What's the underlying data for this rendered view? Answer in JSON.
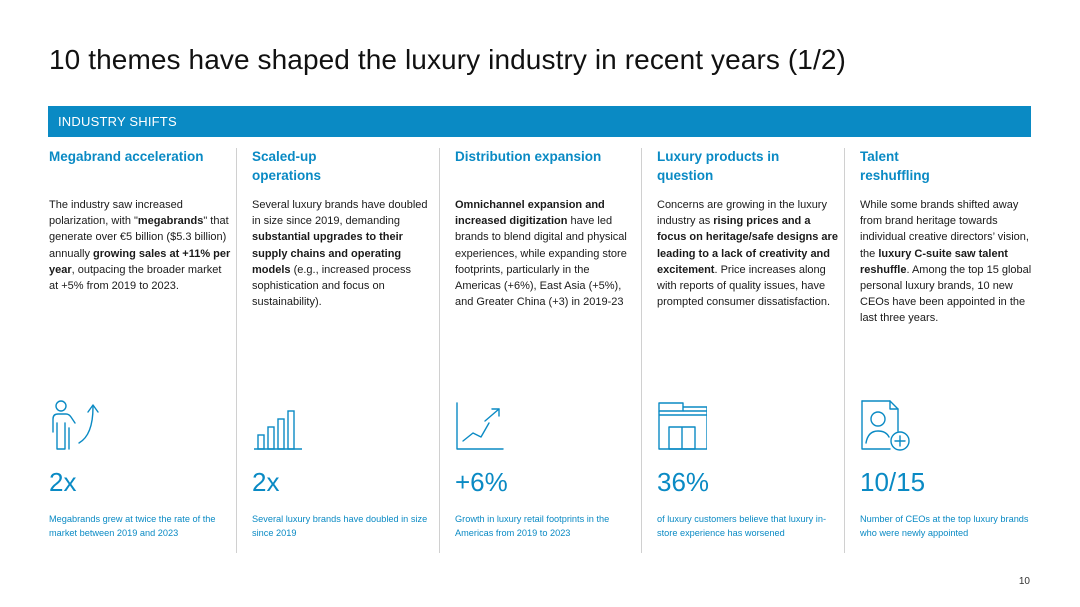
{
  "title": "10 themes have shaped the luxury industry in recent years (1/2)",
  "banner": "INDUSTRY SHIFTS",
  "accent_color": "#0a8ac4",
  "page_number": "10",
  "columns": [
    {
      "heading": "Megabrand acceleration",
      "body": [
        {
          "t": "The industry saw increased polarization, with \""
        },
        {
          "t": "megabrands",
          "b": true
        },
        {
          "t": "\" that generate over €5 billion ($5.3 billion) annually "
        },
        {
          "t": "growing sales at +11% per year",
          "b": true
        },
        {
          "t": ", outpacing the broader market at +5% from 2019 to 2023."
        }
      ],
      "icon": "person-growth-icon",
      "stat": "2x",
      "caption": "Megabrands grew at twice the rate of the market between 2019 and 2023"
    },
    {
      "heading": "Scaled-up operations",
      "body": [
        {
          "t": "Several luxury brands have doubled in size since 2019, demanding "
        },
        {
          "t": "substantial upgrades to their supply chains and operating models",
          "b": true
        },
        {
          "t": " (e.g., increased process sophistication and focus on sustainability)."
        }
      ],
      "icon": "bar-chart-icon",
      "stat": "2x",
      "caption": "Several luxury brands have doubled in size since 2019"
    },
    {
      "heading": "Distribution expansion",
      "body": [
        {
          "t": "Omnichannel expansion and increased digitization",
          "b": true
        },
        {
          "t": " have led brands to blend digital and physical experiences, while expanding store footprints, particularly in the Americas (+6%), East Asia (+5%), and Greater China (+3) in 2019-23"
        }
      ],
      "icon": "line-growth-icon",
      "stat": "+6%",
      "caption": "Growth in luxury retail footprints in the Americas from 2019 to 2023"
    },
    {
      "heading": "Luxury products in question",
      "body": [
        {
          "t": "Concerns are growing in the luxury industry as "
        },
        {
          "t": "rising prices and a focus on heritage/safe designs are leading to a lack of creativity and excitement",
          "b": true
        },
        {
          "t": ". Price increases along with reports of quality issues, have prompted consumer dissatisfaction."
        }
      ],
      "icon": "storefront-icon",
      "stat": "36%",
      "caption": "of luxury customers believe that luxury in-store experience has worsened"
    },
    {
      "heading": "Talent reshuffling",
      "body": [
        {
          "t": "While some brands shifted away from brand heritage towards individual creative directors’ vision, the "
        },
        {
          "t": "luxury C-suite saw talent reshuffle",
          "b": true
        },
        {
          "t": ". Among the top 15 global personal luxury brands, 10 new CEOs have been appointed in the last three years."
        }
      ],
      "icon": "new-profile-icon",
      "stat": "10/15",
      "caption": "Number of CEOs at the top luxury brands who were newly appointed"
    }
  ]
}
